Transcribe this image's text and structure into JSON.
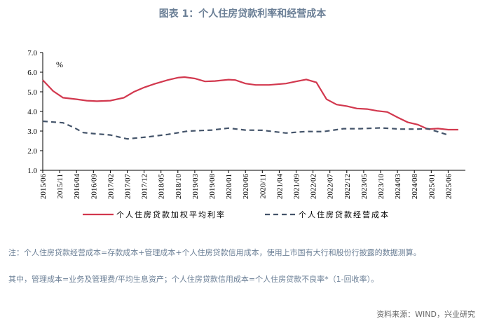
{
  "title": "图表 1：个人住房贷款利率和经营成本",
  "chart_data": {
    "type": "line",
    "unit_label": "%",
    "ylim": [
      1.0,
      7.0
    ],
    "yticks": [
      "7.0",
      "6.0",
      "5.0",
      "4.0",
      "3.0",
      "2.0",
      "1.0"
    ],
    "xticks": [
      "2015/06",
      "2015/11",
      "2016/04",
      "2016/09",
      "2017/02",
      "2017/07",
      "2017/12",
      "2018/05",
      "2018/10",
      "2019/03",
      "2019/08",
      "2020/01",
      "2020/06",
      "2020/11",
      "2021/04",
      "2021/09",
      "2022/02",
      "2022/07",
      "2022/12",
      "2023/05",
      "2023/10",
      "2024/03",
      "2024/08",
      "2025/01",
      "2025/06"
    ],
    "grid": false,
    "legend_position": "bottom",
    "series": [
      {
        "name": "个人住房贷款加权平均利率",
        "color": "#d2384e",
        "style": "solid",
        "points": [
          [
            "2015/06",
            5.6
          ],
          [
            "2015/09",
            5.05
          ],
          [
            "2015/12",
            4.7
          ],
          [
            "2016/04",
            4.62
          ],
          [
            "2016/07",
            4.55
          ],
          [
            "2016/10",
            4.52
          ],
          [
            "2017/02",
            4.55
          ],
          [
            "2017/06",
            4.7
          ],
          [
            "2017/09",
            5.0
          ],
          [
            "2017/12",
            5.22
          ],
          [
            "2018/03",
            5.4
          ],
          [
            "2018/07",
            5.6
          ],
          [
            "2018/10",
            5.72
          ],
          [
            "2018/12",
            5.75
          ],
          [
            "2019/03",
            5.68
          ],
          [
            "2019/06",
            5.53
          ],
          [
            "2019/09",
            5.55
          ],
          [
            "2020/01",
            5.62
          ],
          [
            "2020/03",
            5.6
          ],
          [
            "2020/06",
            5.42
          ],
          [
            "2020/09",
            5.35
          ],
          [
            "2021/01",
            5.35
          ],
          [
            "2021/06",
            5.42
          ],
          [
            "2021/09",
            5.53
          ],
          [
            "2021/12",
            5.63
          ],
          [
            "2022/03",
            5.48
          ],
          [
            "2022/06",
            4.62
          ],
          [
            "2022/09",
            4.35
          ],
          [
            "2022/12",
            4.27
          ],
          [
            "2023/03",
            4.15
          ],
          [
            "2023/06",
            4.12
          ],
          [
            "2023/09",
            4.03
          ],
          [
            "2023/12",
            3.97
          ],
          [
            "2024/03",
            3.7
          ],
          [
            "2024/06",
            3.45
          ],
          [
            "2024/09",
            3.33
          ],
          [
            "2024/12",
            3.1
          ],
          [
            "2025/03",
            3.13
          ],
          [
            "2025/06",
            3.07
          ],
          [
            "2025/09",
            3.07
          ]
        ]
      },
      {
        "name": "个人住房贷款经营成本",
        "color": "#44546a",
        "style": "dashed",
        "points": [
          [
            "2015/06",
            3.5
          ],
          [
            "2015/12",
            3.42
          ],
          [
            "2016/03",
            3.2
          ],
          [
            "2016/06",
            2.92
          ],
          [
            "2016/09",
            2.87
          ],
          [
            "2017/02",
            2.8
          ],
          [
            "2017/07",
            2.6
          ],
          [
            "2018/01",
            2.7
          ],
          [
            "2018/07",
            2.83
          ],
          [
            "2019/01",
            3.0
          ],
          [
            "2019/05",
            3.03
          ],
          [
            "2019/08",
            3.05
          ],
          [
            "2020/01",
            3.15
          ],
          [
            "2020/06",
            3.05
          ],
          [
            "2020/11",
            3.04
          ],
          [
            "2021/06",
            2.9
          ],
          [
            "2021/12",
            2.98
          ],
          [
            "2022/05",
            2.97
          ],
          [
            "2022/11",
            3.12
          ],
          [
            "2023/04",
            3.12
          ],
          [
            "2023/10",
            3.16
          ],
          [
            "2024/04",
            3.1
          ],
          [
            "2024/09",
            3.1
          ],
          [
            "2024/12",
            3.12
          ],
          [
            "2025/06",
            2.8
          ]
        ]
      }
    ]
  },
  "notes": [
    "注：个人住房贷款经营成本=存款成本+管理成本+个人住房贷款信用成本，使用上市国有大行和股份行披露的数据测算。",
    "其中，管理成本=业务及管理费/平均生息资产；个人住房贷款信用成本=个人住房贷款不良率*（1-回收率）。"
  ],
  "source": "资料来源：WIND，兴业研究"
}
